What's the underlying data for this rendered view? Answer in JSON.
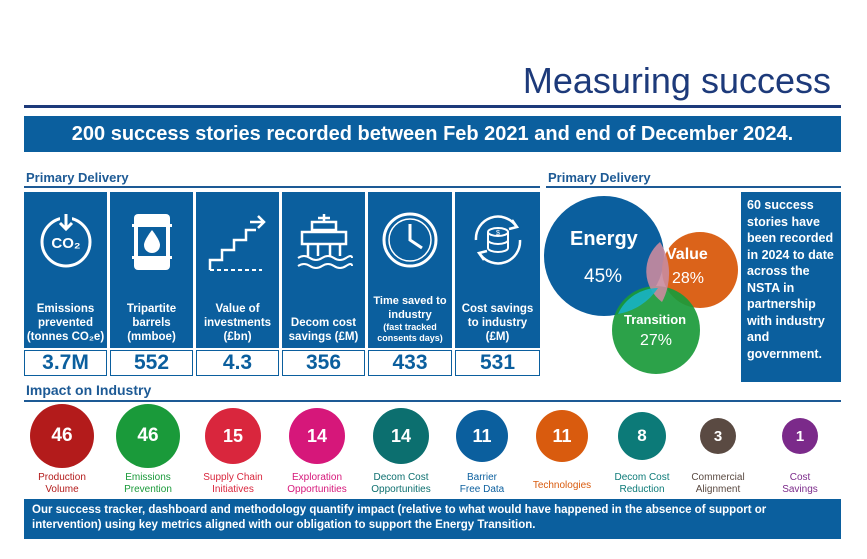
{
  "page_title": "Measuring success",
  "banner": "200 success stories recorded between Feb 2021 and end of December 2024.",
  "primary_delivery": {
    "heading": "Primary Delivery",
    "stats": [
      {
        "icon": "co2-down-icon",
        "label": "Emissions prevented (tonnes CO₂e)",
        "value": "3.7M"
      },
      {
        "icon": "oil-barrel-icon",
        "label": "Tripartite barrels (mmboe)",
        "value": "552"
      },
      {
        "icon": "rising-stairs-icon",
        "label": "Value of investments (£bn)",
        "value": "4.3"
      },
      {
        "icon": "decom-platform-icon",
        "label": "Decom cost savings (£M)",
        "value": "356"
      },
      {
        "icon": "clock-icon",
        "label": "Time saved to industry",
        "note": "(fast tracked consents days)",
        "value": "433"
      },
      {
        "icon": "coin-stack-cycle-icon",
        "label": "Cost savings to industry (£M)",
        "value": "531"
      }
    ]
  },
  "venn": {
    "heading": "Primary Delivery",
    "energy": {
      "label": "Energy",
      "percent": "45%",
      "color": "#0b5f9e"
    },
    "value": {
      "label": "Value",
      "percent": "28%",
      "color": "#d95b0e"
    },
    "transition": {
      "label": "Transition",
      "percent": "27%",
      "color": "#1a9a3a"
    },
    "note": "60 success stories have been recorded in 2024 to date across the NSTA in partnership with industry and government."
  },
  "impact": {
    "heading": "Impact on Industry",
    "items": [
      {
        "count": "46",
        "label": "Production Volume",
        "color": "#b31b1b"
      },
      {
        "count": "46",
        "label": "Emissions Prevention",
        "color": "#1a9a3a"
      },
      {
        "count": "15",
        "label": "Supply Chain Initiatives",
        "color": "#d9263d"
      },
      {
        "count": "14",
        "label": "Exploration Opportunities",
        "color": "#d6177a"
      },
      {
        "count": "14",
        "label": "Decom Cost Opportunities",
        "color": "#0c6f6f"
      },
      {
        "count": "11",
        "label": "Barrier Free Data",
        "color": "#0b5f9e"
      },
      {
        "count": "11",
        "label": "Technologies",
        "color": "#d95b0e"
      },
      {
        "count": "8",
        "label": "Decom Cost Reduction",
        "color": "#0c7a78"
      },
      {
        "count": "3",
        "label": "Commercial Alignment",
        "color": "#5a4a42"
      },
      {
        "count": "1",
        "label": "Cost Savings",
        "color": "#7b2a8a"
      }
    ]
  },
  "footer": "Our success tracker, dashboard and methodology quantify impact (relative to what would have happened in the absence of support or intervention) using key metrics aligned with our obligation to support the Energy Transition."
}
